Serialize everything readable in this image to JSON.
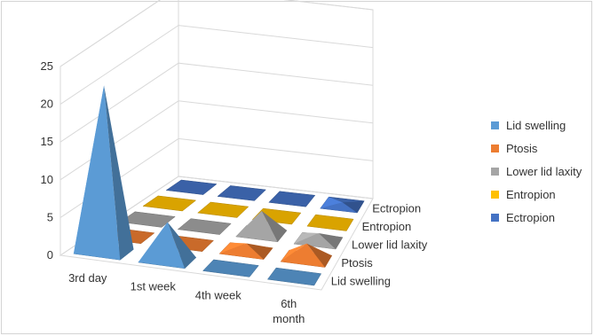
{
  "chart_data": {
    "type": "bar",
    "variant": "3d-pyramid",
    "categories": [
      "3rd day",
      "1st week",
      "4th week",
      "6th month"
    ],
    "category_lines": [
      [
        "3rd day"
      ],
      [
        "1st week"
      ],
      [
        "4th week"
      ],
      [
        "6th",
        "month"
      ]
    ],
    "depth_labels": [
      "Lid swelling",
      "Ptosis",
      "Lower lid laxity",
      "Entropion",
      "Ectropion"
    ],
    "ylim": [
      0,
      25
    ],
    "yticks": [
      "0",
      "5",
      "10",
      "15",
      "20",
      "25"
    ],
    "grid": true,
    "legend_position": "right",
    "series": [
      {
        "name": "Lid swelling",
        "color": "#5b9bd5",
        "values": [
          22,
          5,
          0,
          0
        ]
      },
      {
        "name": "Ptosis",
        "color": "#ed7d31",
        "values": [
          0,
          0,
          1,
          2
        ]
      },
      {
        "name": "Lower lid laxity",
        "color": "#a5a5a5",
        "values": [
          0,
          0,
          3,
          1
        ]
      },
      {
        "name": "Entropion",
        "color": "#ffc000",
        "values": [
          0,
          0,
          0,
          0
        ]
      },
      {
        "name": "Ectropion",
        "color": "#4472c4",
        "values": [
          0,
          0,
          0,
          0.3
        ]
      }
    ]
  }
}
